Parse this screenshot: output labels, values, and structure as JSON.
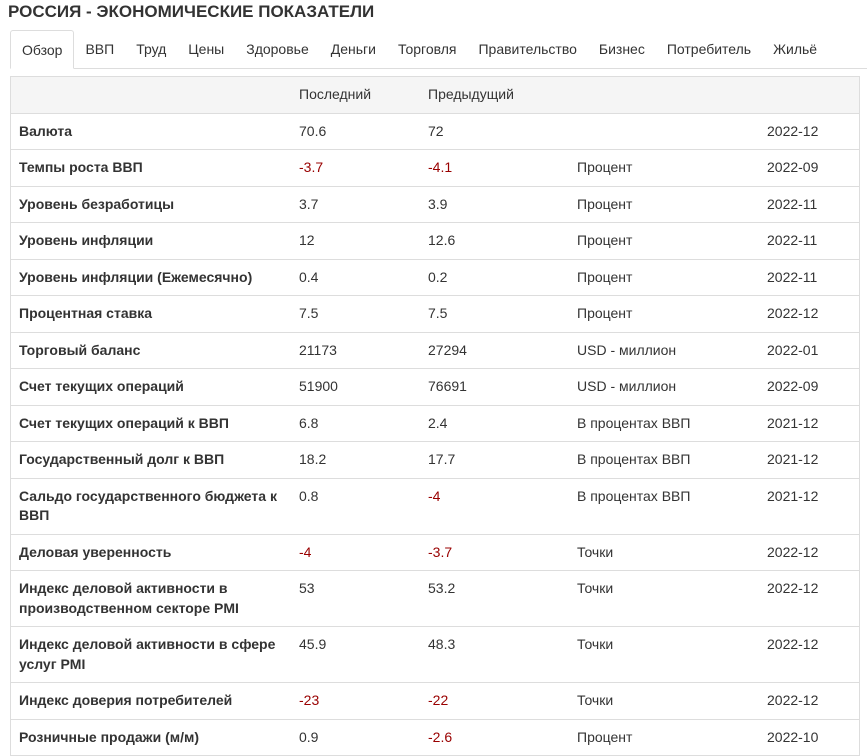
{
  "header": {
    "title": "РОССИЯ - ЭКОНОМИЧЕСКИЕ ПОКАЗАТЕЛИ"
  },
  "tabs": {
    "items": [
      "Обзор",
      "ВВП",
      "Труд",
      "Цены",
      "Здоровье",
      "Деньги",
      "Торговля",
      "Правительство",
      "Бизнес",
      "Потребитель",
      "Жильё"
    ],
    "active": 0
  },
  "table": {
    "columns": {
      "last": "Последний",
      "previous": "Предыдущий"
    },
    "rows": [
      {
        "label": "Валюта",
        "last": 70.6,
        "previous": 72,
        "date": "2022-12"
      },
      {
        "label": "Темпы роста ВВП",
        "last": -3.7,
        "previous": -4.1,
        "unit": "Процент",
        "date": "2022-09"
      },
      {
        "label": "Уровень безработицы",
        "last": 3.7,
        "previous": 3.9,
        "unit": "Процент",
        "date": "2022-11"
      },
      {
        "label": "Уровень инфляции",
        "last": 12,
        "previous": 12.6,
        "unit": "Процент",
        "date": "2022-11"
      },
      {
        "label": "Уровень инфляции (Ежемесячно)",
        "last": 0.4,
        "previous": 0.2,
        "unit": "Процент",
        "date": "2022-11"
      },
      {
        "label": "Процентная ставка",
        "last": 7.5,
        "previous": 7.5,
        "unit": "Процент",
        "date": "2022-12"
      },
      {
        "label": "Торговый баланс",
        "last": 21173,
        "previous": 27294,
        "unit": "USD - миллион",
        "date": "2022-01"
      },
      {
        "label": "Счет текущих операций",
        "last": 51900,
        "previous": 76691,
        "unit": "USD - миллион",
        "date": "2022-09"
      },
      {
        "label": "Счет текущих операций к ВВП",
        "last": 6.8,
        "previous": 2.4,
        "unit": "В процентах ВВП",
        "date": "2021-12"
      },
      {
        "label": "Государственный долг к ВВП",
        "last": 18.2,
        "previous": 17.7,
        "unit": "В процентах ВВП",
        "date": "2021-12"
      },
      {
        "label": "Сальдо государственного бюджета к ВВП",
        "last": 0.8,
        "previous": -4,
        "unit": "В процентах ВВП",
        "date": "2021-12"
      },
      {
        "label": "Деловая уверенность",
        "last": -4,
        "previous": -3.7,
        "unit": "Точки",
        "date": "2022-12"
      },
      {
        "label": "Индекс деловой активности в производственном секторе PMI",
        "last": 53,
        "previous": 53.2,
        "unit": "Точки",
        "date": "2022-12"
      },
      {
        "label": "Индекс деловой активности в сфере услуг PMI",
        "last": 45.9,
        "previous": 48.3,
        "unit": "Точки",
        "date": "2022-12"
      },
      {
        "label": "Индекс доверия потребителей",
        "last": -23,
        "previous": -22,
        "unit": "Точки",
        "date": "2022-12"
      },
      {
        "label": "Розничные продажи (м/м)",
        "last": 0.9,
        "previous": -2.6,
        "unit": "Процент",
        "date": "2022-10"
      }
    ]
  }
}
